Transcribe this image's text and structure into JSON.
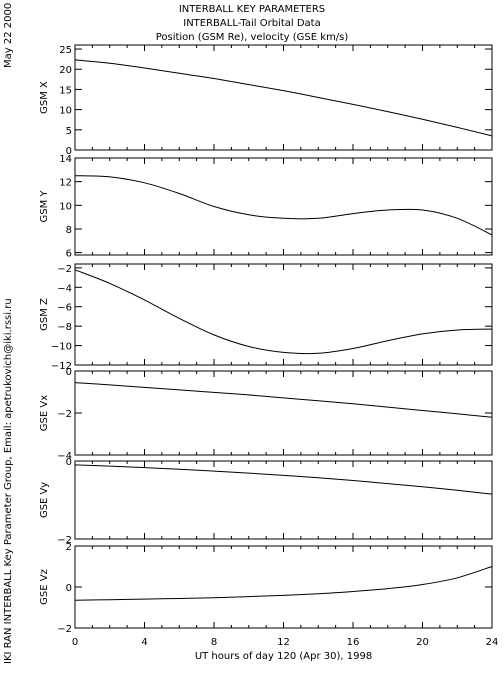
{
  "header": {
    "line1": "INTERBALL KEY PARAMETERS",
    "line2": "INTERBALL-Tail Orbital Data",
    "line3": "Position (GSM Re), velocity (GSE km/s)"
  },
  "side_date": "May 22 2000",
  "side_credit": "IKI RAN INTERBALL Key Parameter Group, Email: apetrukovich@iki.rssi.ru",
  "chart_data": {
    "type": "line",
    "xlabel": "UT hours of day 120 (Apr 30), 1998",
    "xlim": [
      0,
      24
    ],
    "x_ticks": [
      0,
      4,
      8,
      12,
      16,
      20,
      24
    ],
    "x": [
      0,
      2,
      4,
      6,
      8,
      10,
      12,
      14,
      16,
      18,
      20,
      22,
      24
    ],
    "panels": [
      {
        "ylabel": "GSM X",
        "ylim": [
          0,
          26
        ],
        "y_ticks": [
          0,
          5,
          10,
          15,
          20,
          25
        ],
        "values": [
          22.3,
          21.5,
          20.3,
          19.0,
          17.7,
          16.2,
          14.7,
          13.0,
          11.3,
          9.5,
          7.6,
          5.6,
          3.5
        ]
      },
      {
        "ylabel": "GSM Y",
        "ylim": [
          5.8,
          14
        ],
        "y_ticks": [
          6,
          8,
          10,
          12,
          14
        ],
        "values": [
          12.5,
          12.4,
          11.9,
          11.0,
          9.9,
          9.2,
          8.9,
          8.9,
          9.3,
          9.6,
          9.6,
          8.9,
          7.5
        ]
      },
      {
        "ylabel": "GSM Z",
        "ylim": [
          -12,
          -1.6
        ],
        "y_ticks": [
          -2,
          -4,
          -6,
          -8,
          -10,
          -12
        ],
        "values": [
          -2.2,
          -3.6,
          -5.3,
          -7.2,
          -8.9,
          -10.1,
          -10.7,
          -10.8,
          -10.3,
          -9.5,
          -8.8,
          -8.4,
          -8.3
        ]
      },
      {
        "ylabel": "GSE Vx",
        "ylim": [
          -4,
          0
        ],
        "y_ticks": [
          0,
          -2,
          -4
        ],
        "values": [
          -0.55,
          -0.66,
          -0.78,
          -0.9,
          -1.02,
          -1.14,
          -1.28,
          -1.42,
          -1.56,
          -1.72,
          -1.88,
          -2.04,
          -2.2
        ]
      },
      {
        "ylabel": "GSE Vy",
        "ylim": [
          -2,
          0
        ],
        "y_ticks": [
          0,
          -2
        ],
        "values": [
          -0.1,
          -0.13,
          -0.17,
          -0.21,
          -0.26,
          -0.31,
          -0.37,
          -0.43,
          -0.5,
          -0.58,
          -0.66,
          -0.75,
          -0.85
        ]
      },
      {
        "ylabel": "GSE Vz",
        "ylim": [
          -2,
          2
        ],
        "y_ticks": [
          2,
          0,
          -2
        ],
        "values": [
          -0.65,
          -0.62,
          -0.59,
          -0.56,
          -0.52,
          -0.47,
          -0.41,
          -0.33,
          -0.22,
          -0.08,
          0.12,
          0.45,
          1.0
        ]
      }
    ]
  }
}
